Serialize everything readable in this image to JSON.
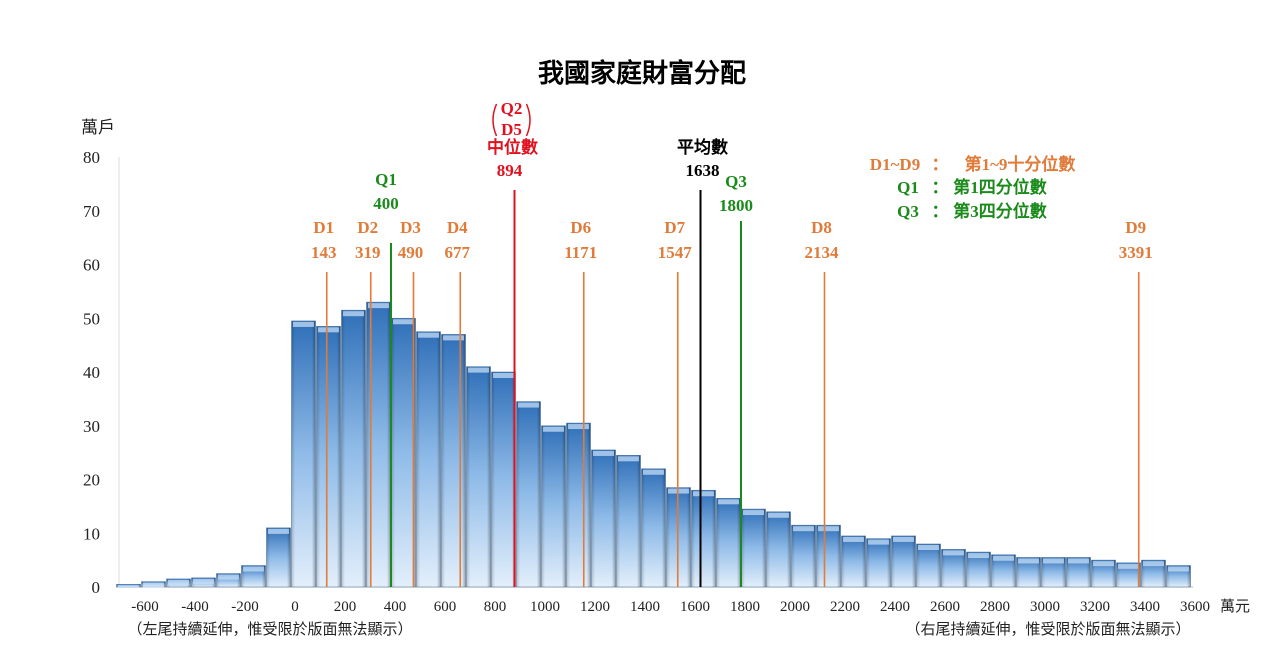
{
  "chart_data": {
    "type": "bar",
    "title": "我國家庭財富分配",
    "ylabel": "萬戶",
    "xlabel": "萬元",
    "ylim": [
      0,
      80
    ],
    "yticks": [
      0,
      10,
      20,
      30,
      40,
      50,
      60,
      70,
      80
    ],
    "xticks": [
      -600,
      -400,
      -200,
      0,
      200,
      400,
      600,
      800,
      1000,
      1200,
      1400,
      1600,
      1800,
      2000,
      2200,
      2400,
      2600,
      2800,
      3000,
      3200,
      3400,
      3600
    ],
    "xlim": [
      -700,
      3600
    ],
    "bin_width": 100,
    "bins": [
      -700,
      -600,
      -500,
      -400,
      -300,
      -200,
      -100,
      0,
      100,
      200,
      300,
      400,
      500,
      600,
      700,
      800,
      900,
      1000,
      1100,
      1200,
      1300,
      1400,
      1500,
      1600,
      1700,
      1800,
      1900,
      2000,
      2100,
      2200,
      2300,
      2400,
      2500,
      2600,
      2700,
      2800,
      2900,
      3000,
      3100,
      3200,
      3300,
      3400,
      3500
    ],
    "values": [
      0.5,
      1,
      1.5,
      1.7,
      2.5,
      4,
      11,
      49.5,
      48.5,
      51.5,
      53,
      50,
      47.5,
      47,
      41,
      40,
      34.5,
      30,
      30.5,
      25.5,
      24.5,
      22,
      18.5,
      18,
      16.5,
      14.5,
      14,
      11.5,
      11.5,
      9.5,
      9,
      9.5,
      8,
      7,
      6.5,
      6,
      5.5,
      5.5,
      5.5,
      5,
      4.5,
      5,
      4
    ],
    "grid": false,
    "markers": [
      {
        "label": "D1",
        "value": 143,
        "value_text": "143",
        "color": "#e07b39",
        "kind": "decile"
      },
      {
        "label": "D2",
        "value": 319,
        "value_text": "319",
        "color": "#e07b39",
        "kind": "decile"
      },
      {
        "label": "D3",
        "value": 490,
        "value_text": "490",
        "color": "#e07b39",
        "kind": "decile"
      },
      {
        "label": "D4",
        "value": 677,
        "value_text": "677",
        "color": "#e07b39",
        "kind": "decile"
      },
      {
        "label": "D6",
        "value": 1171,
        "value_text": "1171",
        "color": "#e07b39",
        "kind": "decile"
      },
      {
        "label": "D7",
        "value": 1547,
        "value_text": "1547",
        "color": "#e07b39",
        "kind": "decile"
      },
      {
        "label": "D8",
        "value": 2134,
        "value_text": "2134",
        "color": "#e07b39",
        "kind": "decile"
      },
      {
        "label": "D9",
        "value": 3391,
        "value_text": "3391",
        "color": "#e07b39",
        "kind": "decile"
      },
      {
        "label": "Q1",
        "value": 400,
        "value_text": "400",
        "color": "#1a8a1a",
        "kind": "q1"
      },
      {
        "label": "Q3",
        "value": 1800,
        "value_text": "1800",
        "color": "#1a8a1a",
        "kind": "q3"
      },
      {
        "label": "中位數",
        "label_top1": "Q2",
        "label_top2": "D5",
        "value": 894,
        "value_text": "894",
        "color": "#e0101e",
        "kind": "median"
      },
      {
        "label": "平均數",
        "value": 1638,
        "value_text": "1638",
        "color": "#000000",
        "kind": "mean"
      }
    ],
    "legend": [
      {
        "key": "D1~D9",
        "sep": "：",
        "desc": "第1~9十分位數",
        "color": "#e07b39"
      },
      {
        "key": "Q1",
        "sep": "：",
        "desc": "第1四分位數",
        "color": "#1a8a1a"
      },
      {
        "key": "Q3",
        "sep": "：",
        "desc": "第3四分位數",
        "color": "#1a8a1a"
      }
    ],
    "legend_position": "top-right",
    "notes": {
      "left": "（左尾持續延伸，惟受限於版面無法顯示）",
      "right": "（右尾持續延伸，惟受限於版面無法顯示）"
    },
    "colors": {
      "bar_top": "#2f6fb8",
      "bar_bottom": "#dcebfa"
    }
  }
}
